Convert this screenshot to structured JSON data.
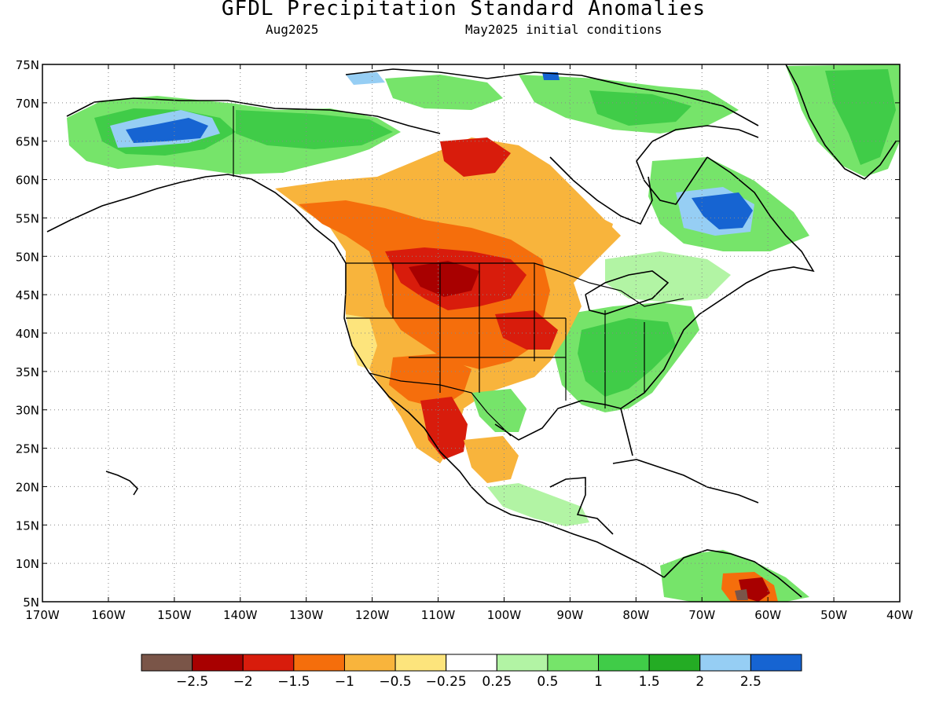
{
  "title": "GFDL Precipitation Standard Anomalies",
  "valid_month": "Aug2025",
  "initial_conditions": "May2025 initial conditions",
  "lat_labels": [
    "75N",
    "70N",
    "65N",
    "60N",
    "55N",
    "50N",
    "45N",
    "40N",
    "35N",
    "30N",
    "25N",
    "20N",
    "15N",
    "10N",
    "5N"
  ],
  "lon_labels": [
    "170W",
    "160W",
    "150W",
    "140W",
    "130W",
    "120W",
    "110W",
    "100W",
    "90W",
    "80W",
    "70W",
    "60W",
    "50W",
    "40W"
  ],
  "colorbar": {
    "colors": [
      "#7a5548",
      "#a80000",
      "#d81c0c",
      "#f56e0c",
      "#f8b43c",
      "#fde47c",
      "#ffffff",
      "#b2f4a4",
      "#76e46a",
      "#40cc48",
      "#24ac24",
      "#96cef4",
      "#1664d2"
    ],
    "labels": [
      "−2.5",
      "−2",
      "−1.5",
      "−1",
      "−0.5",
      "−0.25",
      "0.25",
      "0.5",
      "1",
      "1.5",
      "2",
      "2.5"
    ]
  }
}
